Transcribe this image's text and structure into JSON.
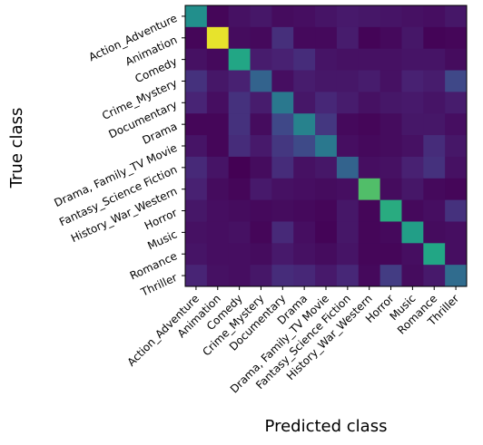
{
  "chart_data": {
    "type": "heatmap",
    "title": "",
    "xlabel": "Predicted class",
    "ylabel": "True class",
    "colormap": "viridis",
    "vlim": [
      0,
      1
    ],
    "categories": [
      "Action_Adventure",
      "Animation",
      "Comedy",
      "Crime_Mystery",
      "Documentary",
      "Drama",
      "Drama, Family_TV Movie",
      "Fantasy_Science Fiction",
      "History_War_Western",
      "Horror",
      "Music",
      "Romance",
      "Thriller"
    ],
    "matrix": [
      [
        0.62,
        0.02,
        0.06,
        0.08,
        0.04,
        0.05,
        0.07,
        0.09,
        0.08,
        0.07,
        0.06,
        0.05,
        0.08
      ],
      [
        0.02,
        0.98,
        0.04,
        0.03,
        0.17,
        0.03,
        0.03,
        0.1,
        0.01,
        0.03,
        0.08,
        0.01,
        0.02
      ],
      [
        0.06,
        0.03,
        0.74,
        0.1,
        0.12,
        0.16,
        0.07,
        0.06,
        0.06,
        0.06,
        0.07,
        0.07,
        0.04
      ],
      [
        0.18,
        0.08,
        0.12,
        0.4,
        0.05,
        0.1,
        0.08,
        0.08,
        0.1,
        0.06,
        0.12,
        0.1,
        0.27
      ],
      [
        0.13,
        0.05,
        0.18,
        0.1,
        0.5,
        0.08,
        0.14,
        0.1,
        0.06,
        0.08,
        0.09,
        0.07,
        0.1
      ],
      [
        0.02,
        0.02,
        0.18,
        0.04,
        0.27,
        0.55,
        0.2,
        0.03,
        0.02,
        0.04,
        0.08,
        0.08,
        0.05
      ],
      [
        0.07,
        0.02,
        0.16,
        0.09,
        0.2,
        0.28,
        0.5,
        0.05,
        0.03,
        0.04,
        0.06,
        0.16,
        0.08
      ],
      [
        0.15,
        0.07,
        0.0,
        0.04,
        0.16,
        0.06,
        0.08,
        0.4,
        0.05,
        0.06,
        0.12,
        0.18,
        0.06
      ],
      [
        0.12,
        0.04,
        0.02,
        0.09,
        0.06,
        0.05,
        0.04,
        0.05,
        0.82,
        0.04,
        0.08,
        0.03,
        0.02
      ],
      [
        0.08,
        0.05,
        0.04,
        0.03,
        0.04,
        0.03,
        0.02,
        0.08,
        0.02,
        0.76,
        0.03,
        0.05,
        0.18
      ],
      [
        0.06,
        0.05,
        0.06,
        0.02,
        0.15,
        0.05,
        0.01,
        0.08,
        0.02,
        0.03,
        0.7,
        0.04,
        0.05
      ],
      [
        0.07,
        0.05,
        0.05,
        0.04,
        0.09,
        0.06,
        0.04,
        0.07,
        0.02,
        0.02,
        0.05,
        0.74,
        0.05
      ],
      [
        0.13,
        0.06,
        0.05,
        0.08,
        0.16,
        0.14,
        0.09,
        0.14,
        0.03,
        0.22,
        0.04,
        0.09,
        0.44
      ]
    ]
  }
}
